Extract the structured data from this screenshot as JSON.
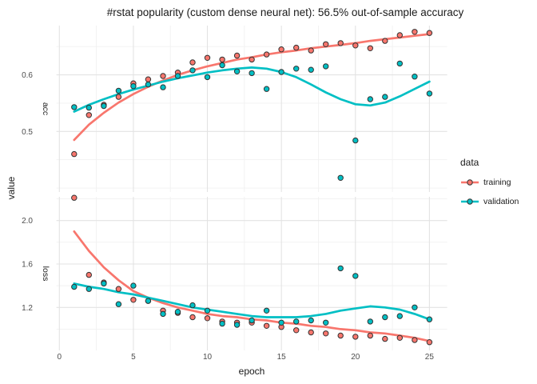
{
  "title": "#rstat popularity (custom dense neural net): 56.5% out-of-sample accuracy",
  "axis": {
    "x_title": "epoch",
    "y_title": "value"
  },
  "x_ticks": [
    {
      "label": "0",
      "value": 0
    },
    {
      "label": "5",
      "value": 5
    },
    {
      "label": "10",
      "value": 10
    },
    {
      "label": "15",
      "value": 15
    },
    {
      "label": "20",
      "value": 20
    },
    {
      "label": "25",
      "value": 25
    }
  ],
  "x_minor": [
    2.5,
    7.5,
    12.5,
    17.5,
    22.5
  ],
  "xlim": [
    -0.2,
    26.2
  ],
  "legend": {
    "title": "data",
    "items": [
      {
        "label": "training",
        "color": "#F8766D"
      },
      {
        "label": "validation",
        "color": "#00BFC4"
      }
    ]
  },
  "colors": {
    "training": "#F8766D",
    "validation": "#00BFC4",
    "grid_major": "#E3E3E3",
    "grid_minor": "#F1F1F1",
    "tick_text": "#4D4D4D",
    "point_outline": "#333333"
  },
  "chart_data": [
    {
      "type": "scatter",
      "facet_label": "acc",
      "xlabel": "epoch",
      "ylabel": "value",
      "grid": true,
      "legend_position": "right",
      "x": [
        1,
        2,
        3,
        4,
        5,
        6,
        7,
        8,
        9,
        10,
        11,
        12,
        13,
        14,
        15,
        16,
        17,
        18,
        19,
        20,
        21,
        22,
        23,
        24,
        25
      ],
      "ylim": [
        0.393,
        0.687
      ],
      "y_ticks": [
        {
          "label": "0.5",
          "value": 0.5
        },
        {
          "label": "0.6",
          "value": 0.6
        }
      ],
      "y_minor": [
        0.4,
        0.45,
        0.55,
        0.65
      ],
      "series": [
        {
          "name": "training",
          "points": [
            0.46,
            0.529,
            0.547,
            0.561,
            0.585,
            0.592,
            0.598,
            0.604,
            0.622,
            0.63,
            0.627,
            0.634,
            0.627,
            0.636,
            0.645,
            0.648,
            0.643,
            0.654,
            0.656,
            0.652,
            0.647,
            0.66,
            0.67,
            0.676,
            0.674
          ],
          "smooth": [
            0.485,
            0.512,
            0.533,
            0.551,
            0.566,
            0.579,
            0.59,
            0.6,
            0.608,
            0.615,
            0.621,
            0.627,
            0.631,
            0.636,
            0.64,
            0.643,
            0.647,
            0.65,
            0.653,
            0.656,
            0.66,
            0.663,
            0.666,
            0.669,
            0.672
          ]
        },
        {
          "name": "validation",
          "points": [
            0.543,
            0.542,
            0.545,
            0.572,
            0.58,
            0.583,
            0.578,
            0.598,
            0.608,
            0.596,
            0.617,
            0.606,
            0.603,
            0.575,
            0.605,
            0.611,
            0.609,
            0.615,
            0.418,
            0.484,
            0.557,
            0.561,
            0.62,
            0.597,
            0.567
          ],
          "smooth": [
            0.535,
            0.547,
            0.557,
            0.566,
            0.574,
            0.581,
            0.588,
            0.594,
            0.599,
            0.604,
            0.608,
            0.611,
            0.613,
            0.611,
            0.605,
            0.596,
            0.583,
            0.569,
            0.557,
            0.548,
            0.546,
            0.551,
            0.562,
            0.575,
            0.588
          ]
        }
      ]
    },
    {
      "type": "scatter",
      "facet_label": "loss",
      "xlabel": "epoch",
      "ylabel": "value",
      "grid": true,
      "legend_position": "right",
      "x": [
        1,
        2,
        3,
        4,
        5,
        6,
        7,
        8,
        9,
        10,
        11,
        12,
        13,
        14,
        15,
        16,
        17,
        18,
        19,
        20,
        21,
        22,
        23,
        24,
        25
      ],
      "ylim": [
        0.804,
        2.219
      ],
      "y_ticks": [
        {
          "label": "1.2",
          "value": 1.2
        },
        {
          "label": "1.6",
          "value": 1.6
        },
        {
          "label": "2.0",
          "value": 2.0
        }
      ],
      "y_minor": [
        1.0,
        1.4,
        1.8,
        2.2
      ],
      "series": [
        {
          "name": "training",
          "points": [
            2.21,
            1.5,
            1.43,
            1.37,
            1.27,
            1.26,
            1.17,
            1.15,
            1.11,
            1.1,
            1.07,
            1.06,
            1.06,
            1.03,
            1.02,
            0.99,
            0.97,
            0.96,
            0.94,
            0.93,
            0.94,
            0.91,
            0.92,
            0.9,
            0.88
          ],
          "smooth": [
            1.9,
            1.72,
            1.57,
            1.45,
            1.35,
            1.29,
            1.24,
            1.2,
            1.17,
            1.14,
            1.12,
            1.11,
            1.09,
            1.08,
            1.06,
            1.05,
            1.03,
            1.02,
            1.0,
            0.99,
            0.97,
            0.96,
            0.94,
            0.92,
            0.89
          ]
        },
        {
          "name": "validation",
          "points": [
            1.39,
            1.37,
            1.42,
            1.23,
            1.4,
            1.26,
            1.14,
            1.16,
            1.22,
            1.17,
            1.05,
            1.04,
            1.08,
            1.17,
            1.06,
            1.07,
            1.08,
            1.06,
            1.56,
            1.49,
            1.07,
            1.11,
            1.12,
            1.2,
            1.09
          ],
          "smooth": [
            1.42,
            1.39,
            1.37,
            1.34,
            1.32,
            1.29,
            1.26,
            1.23,
            1.2,
            1.18,
            1.16,
            1.14,
            1.12,
            1.11,
            1.11,
            1.11,
            1.12,
            1.14,
            1.17,
            1.19,
            1.21,
            1.2,
            1.18,
            1.14,
            1.09
          ]
        }
      ]
    }
  ]
}
